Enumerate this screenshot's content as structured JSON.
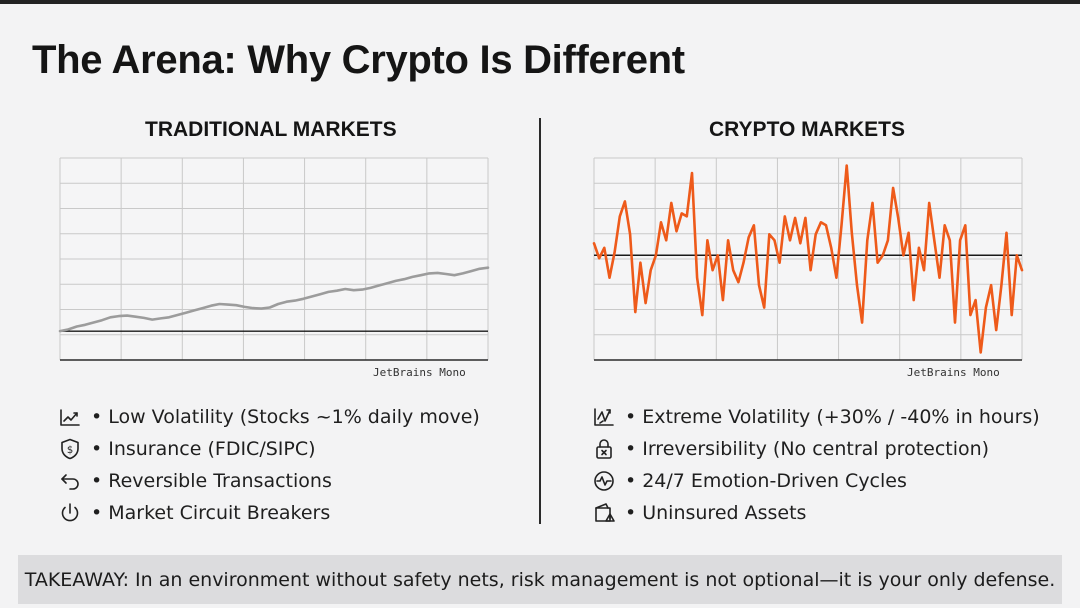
{
  "title": "The Arena: Why Crypto Is Different",
  "left": {
    "heading": "TRADITIONAL MARKETS",
    "chart_note": "JetBrains Mono",
    "features": [
      {
        "icon": "trend-line-icon",
        "text": "Low Volatility (Stocks ~1% daily move)"
      },
      {
        "icon": "shield-dollar-icon",
        "text": "Insurance (FDIC/SIPC)"
      },
      {
        "icon": "undo-arrow-icon",
        "text": "Reversible Transactions"
      },
      {
        "icon": "power-icon",
        "text": "Market Circuit Breakers"
      }
    ]
  },
  "right": {
    "heading": "CRYPTO MARKETS",
    "chart_note": "JetBrains Mono",
    "features": [
      {
        "icon": "volatile-arrows-icon",
        "text": "Extreme Volatility (+30% / -40% in hours)"
      },
      {
        "icon": "locked-x-icon",
        "text": "Irreversibility (No central protection)"
      },
      {
        "icon": "heartbeat-icon",
        "text": "24/7 Emotion-Driven Cycles"
      },
      {
        "icon": "wallet-warning-icon",
        "text": "Uninsured Assets"
      }
    ]
  },
  "bullet": "•",
  "takeaway": "TAKEAWAY: In an environment without safety nets, risk management is not optional—it is your only defense.",
  "colors": {
    "traditional_line": "#9c9c9c",
    "crypto_line": "#ee5a1a",
    "grid": "#c9c9c9",
    "baseline": "#1a1a1a"
  },
  "chart_data": [
    {
      "type": "line",
      "grid": true,
      "series": [
        {
          "values": [
            0.0,
            0.3,
            0.8,
            1.1,
            1.5,
            1.9,
            2.4,
            2.6,
            2.7,
            2.5,
            2.3,
            2.0,
            2.2,
            2.4,
            2.8,
            3.2,
            3.6,
            4.0,
            4.4,
            4.7,
            4.6,
            4.5,
            4.2,
            4.0,
            3.9,
            4.1,
            4.7,
            5.1,
            5.3,
            5.6,
            6.0,
            6.4,
            6.8,
            7.0,
            7.3,
            7.1,
            7.2,
            7.5,
            7.9,
            8.3,
            8.7,
            9.0,
            9.4,
            9.7,
            10.0,
            10.1,
            9.9,
            9.7,
            10.0,
            10.4,
            10.8,
            11.0
          ]
        }
      ]
    },
    {
      "type": "line",
      "grid": true,
      "series": [
        {
          "values": [
            8,
            -2,
            5,
            -15,
            2,
            26,
            36,
            14,
            -38,
            -5,
            -32,
            -10,
            0,
            22,
            10,
            35,
            16,
            28,
            26,
            55,
            -15,
            -40,
            10,
            -10,
            0,
            -30,
            10,
            -10,
            -18,
            -5,
            12,
            20,
            -20,
            -35,
            14,
            10,
            -5,
            26,
            10,
            25,
            8,
            25,
            -10,
            14,
            22,
            20,
            5,
            -15,
            20,
            60,
            15,
            -20,
            -45,
            10,
            35,
            -5,
            0,
            10,
            45,
            25,
            0,
            15,
            -30,
            5,
            -10,
            35,
            10,
            -15,
            20,
            10,
            -45,
            10,
            20,
            -40,
            -30,
            -65,
            -35,
            -20,
            -50,
            -20,
            15,
            -40,
            0,
            -10
          ]
        }
      ]
    }
  ]
}
